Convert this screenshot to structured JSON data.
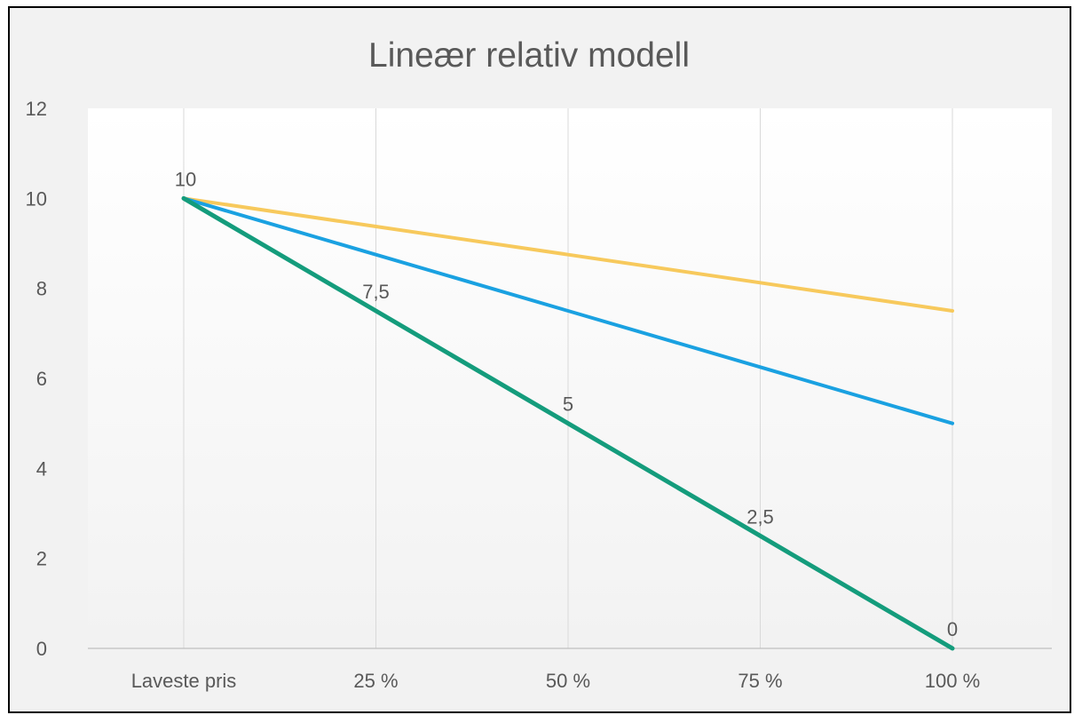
{
  "chart_data": {
    "type": "line",
    "title": "Lineær relativ modell",
    "categories": [
      "Laveste pris",
      "25 %",
      "50 %",
      "75 %",
      "100 %"
    ],
    "ylim": [
      0,
      12
    ],
    "yticks": [
      "0",
      "2",
      "4",
      "6",
      "8",
      "10",
      "12"
    ],
    "grid": "vertical",
    "series": [
      {
        "color": "#f7c95c",
        "values": [
          10,
          9.375,
          8.75,
          8.125,
          7.5
        ]
      },
      {
        "color": "#1aa1e1",
        "values": [
          10,
          8.75,
          7.5,
          6.25,
          5
        ]
      },
      {
        "color": "#149c7c",
        "values": [
          10,
          7.5,
          5,
          2.5,
          0
        ],
        "data_labels": [
          "10",
          "7,5",
          "5",
          "2,5",
          "0"
        ]
      }
    ]
  },
  "colors": {
    "frame_border": "#000000",
    "background": "#f2f2f2",
    "plot_top": "#ffffff",
    "plot_bottom": "#f2f2f2",
    "gridline": "#d9d9d9",
    "axis_line": "#bfbfbf",
    "text": "#595959"
  }
}
